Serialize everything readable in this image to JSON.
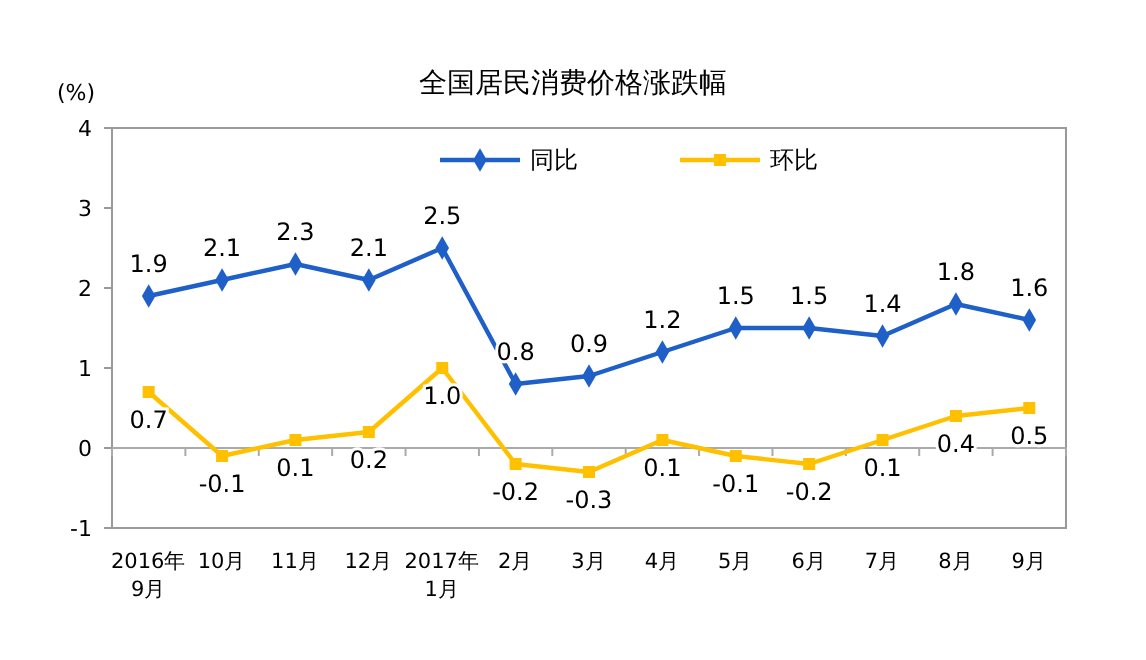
{
  "chart_data": {
    "type": "line",
    "title": "全国居民消费价格涨跌幅",
    "ylabel": "(%)",
    "categories": [
      "2016年\n9月",
      "10月",
      "11月",
      "12月",
      "2017年\n1月",
      "2月",
      "3月",
      "4月",
      "5月",
      "6月",
      "7月",
      "8月",
      "9月"
    ],
    "series": [
      {
        "name": "同比",
        "color": "#1f5fc8",
        "marker": "diamond",
        "values": [
          1.9,
          2.1,
          2.3,
          2.1,
          2.5,
          0.8,
          0.9,
          1.2,
          1.5,
          1.5,
          1.4,
          1.8,
          1.6
        ]
      },
      {
        "name": "环比",
        "color": "#ffc000",
        "marker": "square",
        "values": [
          0.7,
          -0.1,
          0.1,
          0.2,
          1.0,
          -0.2,
          -0.3,
          0.1,
          -0.1,
          -0.2,
          0.1,
          0.4,
          0.5
        ],
        "value_labels": [
          "0.7",
          "-0.1",
          "0.1",
          "0.2",
          "1.0",
          "-0.2",
          "-0.3",
          "0.1",
          "-0.1",
          "-0.2",
          "0.1",
          "0.4",
          "0.5"
        ]
      }
    ],
    "ylim": [
      -1,
      4
    ],
    "yticks": [
      -1,
      0,
      1,
      2,
      3,
      4
    ],
    "data_labels": true,
    "legend": "top",
    "grid": false,
    "ref_lines": [
      {
        "axis": "y",
        "value": 0,
        "color": "#aaaaaa"
      }
    ]
  }
}
